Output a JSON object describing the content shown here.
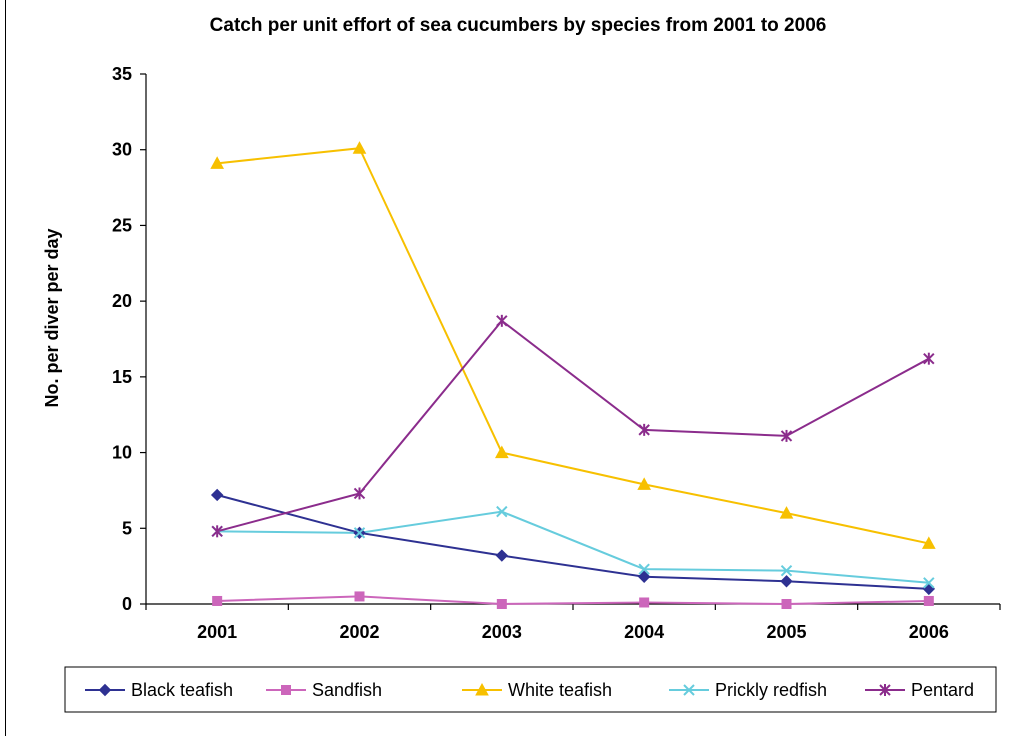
{
  "chart_data": {
    "type": "line",
    "title": "Catch per unit effort of sea cucumbers by species from 2001 to 2006",
    "xlabel": "",
    "ylabel": "No. per diver per day",
    "categories": [
      "2001",
      "2002",
      "2003",
      "2004",
      "2005",
      "2006"
    ],
    "ylim": [
      0,
      35
    ],
    "yticks": [
      0,
      5,
      10,
      15,
      20,
      25,
      30,
      35
    ],
    "grid": false,
    "legend": "bottom",
    "series": [
      {
        "name": "Black teafish",
        "color": "#2e3192",
        "marker": "diamond",
        "values": [
          7.2,
          4.7,
          3.2,
          1.8,
          1.5,
          1.0
        ]
      },
      {
        "name": "Sandfish",
        "color": "#cc66bb",
        "marker": "square",
        "values": [
          0.2,
          0.5,
          0.0,
          0.1,
          0.0,
          0.2
        ]
      },
      {
        "name": "White teafish",
        "color": "#f7c000",
        "marker": "triangle",
        "values": [
          29.1,
          30.1,
          10.0,
          7.9,
          6.0,
          4.0
        ]
      },
      {
        "name": "Prickly redfish",
        "color": "#66ccdd",
        "marker": "x",
        "values": [
          4.8,
          4.7,
          6.1,
          2.3,
          2.2,
          1.4
        ]
      },
      {
        "name": "Pentard",
        "color": "#8b2c8c",
        "marker": "star",
        "values": [
          4.8,
          7.3,
          18.7,
          11.5,
          11.1,
          16.2
        ]
      }
    ]
  }
}
